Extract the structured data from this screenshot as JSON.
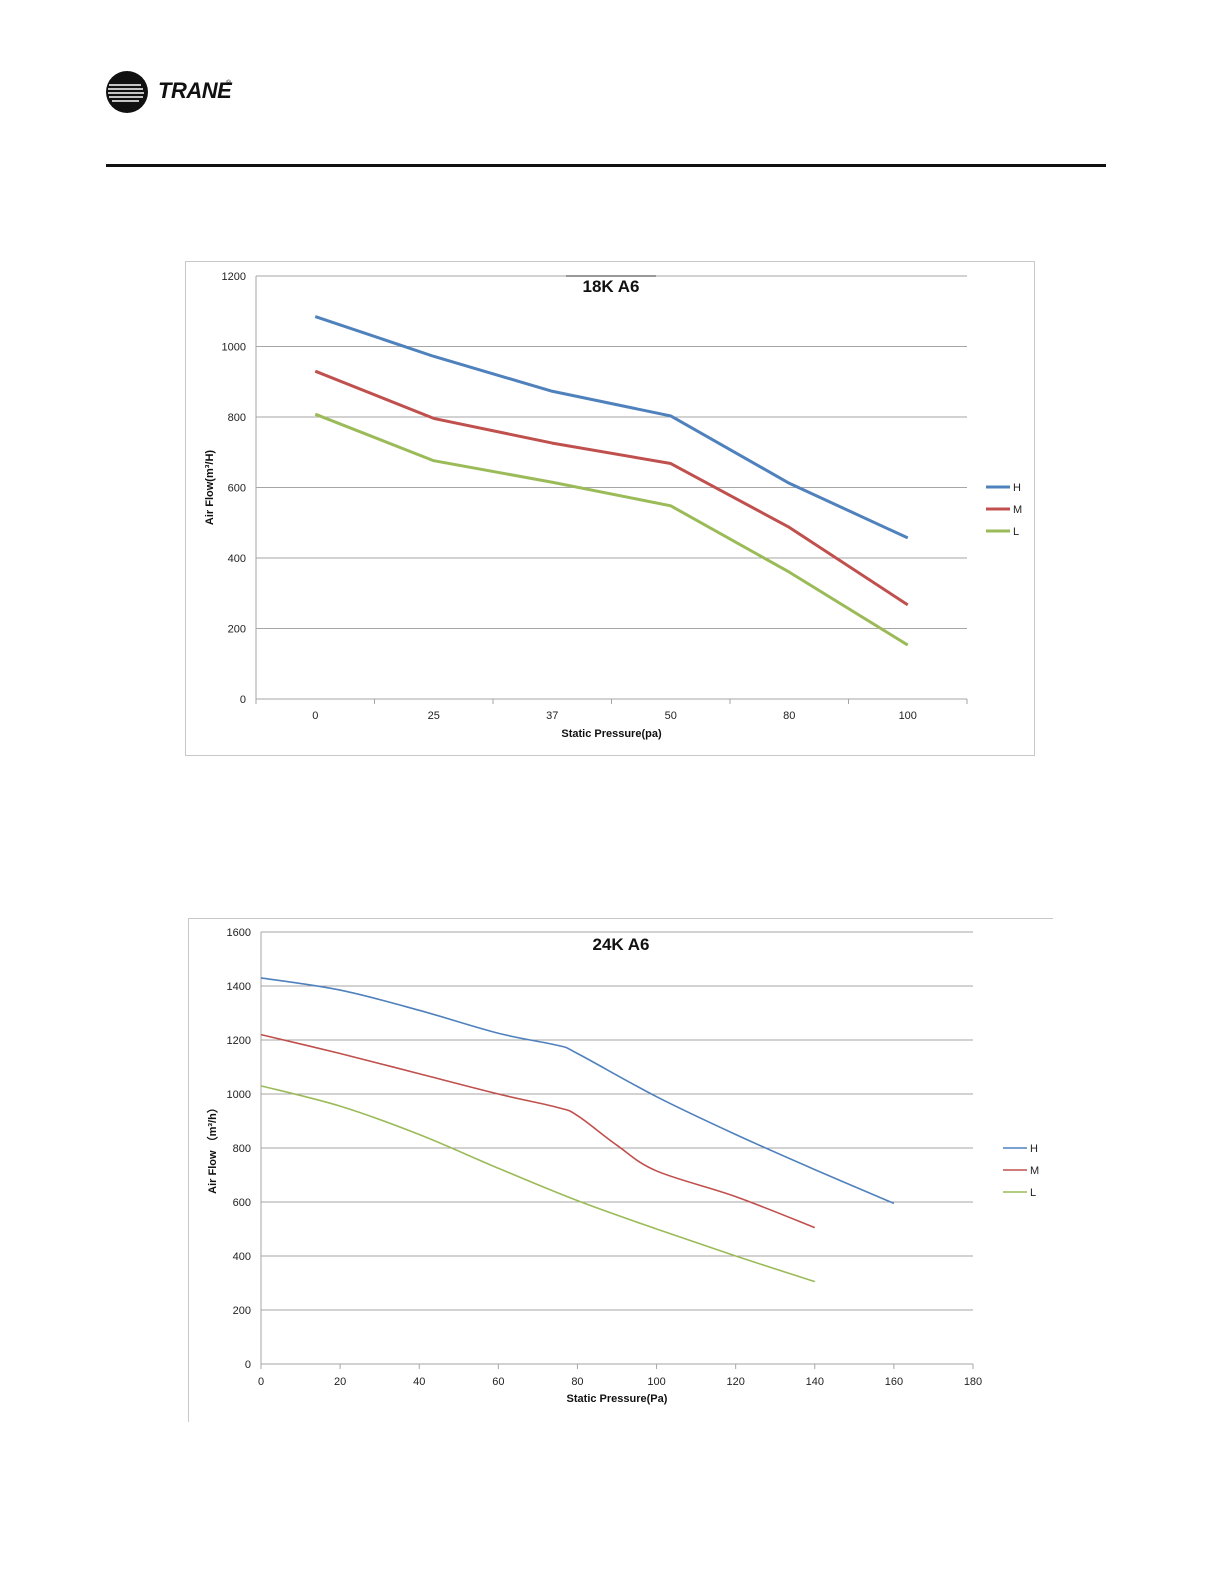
{
  "brand": {
    "name": "TRANE",
    "registered_mark": "®",
    "logo_icon": "trane-circle-logo-icon"
  },
  "chart_data": [
    {
      "type": "line",
      "title": "18K A6",
      "xlabel": "Static Pressure(pa)",
      "ylabel": "Air Flow(m³/H)",
      "x_axis_kind": "category",
      "categories": [
        "0",
        "25",
        "37",
        "50",
        "80",
        "100"
      ],
      "ylim": [
        0,
        1200
      ],
      "yticks": [
        0,
        200,
        400,
        600,
        800,
        1000,
        1200
      ],
      "grid": true,
      "legend": "right",
      "series": [
        {
          "name": "H",
          "color": "#4f81bd",
          "values": [
            1085,
            972,
            873,
            803,
            612,
            457
          ]
        },
        {
          "name": "M",
          "color": "#c0504d",
          "values": [
            930,
            796,
            726,
            668,
            487,
            267
          ]
        },
        {
          "name": "L",
          "color": "#9bbb59",
          "values": [
            808,
            676,
            615,
            548,
            360,
            153
          ]
        }
      ]
    },
    {
      "type": "line",
      "title": "24K A6",
      "xlabel": "Static Pressure(Pa)",
      "ylabel": "Air Flow （m³/h）",
      "x_axis_kind": "numeric",
      "xlim": [
        0,
        180
      ],
      "xticks": [
        0,
        20,
        40,
        60,
        80,
        100,
        120,
        140,
        160,
        180
      ],
      "ylim": [
        0,
        1600
      ],
      "yticks": [
        0,
        200,
        400,
        600,
        800,
        1000,
        1200,
        1400,
        1600
      ],
      "grid": true,
      "legend": "right",
      "series": [
        {
          "name": "H",
          "color": "#4f81bd",
          "x": [
            0,
            20,
            40,
            60,
            75,
            80,
            100,
            120,
            140,
            160
          ],
          "values": [
            1430,
            1385,
            1310,
            1225,
            1180,
            1150,
            990,
            850,
            720,
            595
          ]
        },
        {
          "name": "M",
          "color": "#c0504d",
          "x": [
            0,
            20,
            40,
            60,
            75,
            80,
            90,
            100,
            120,
            140
          ],
          "values": [
            1220,
            1150,
            1075,
            1000,
            950,
            920,
            810,
            715,
            620,
            505
          ]
        },
        {
          "name": "L",
          "color": "#9bbb59",
          "x": [
            0,
            20,
            40,
            60,
            80,
            100,
            120,
            140
          ],
          "values": [
            1030,
            955,
            850,
            725,
            605,
            500,
            400,
            305
          ]
        }
      ]
    }
  ]
}
